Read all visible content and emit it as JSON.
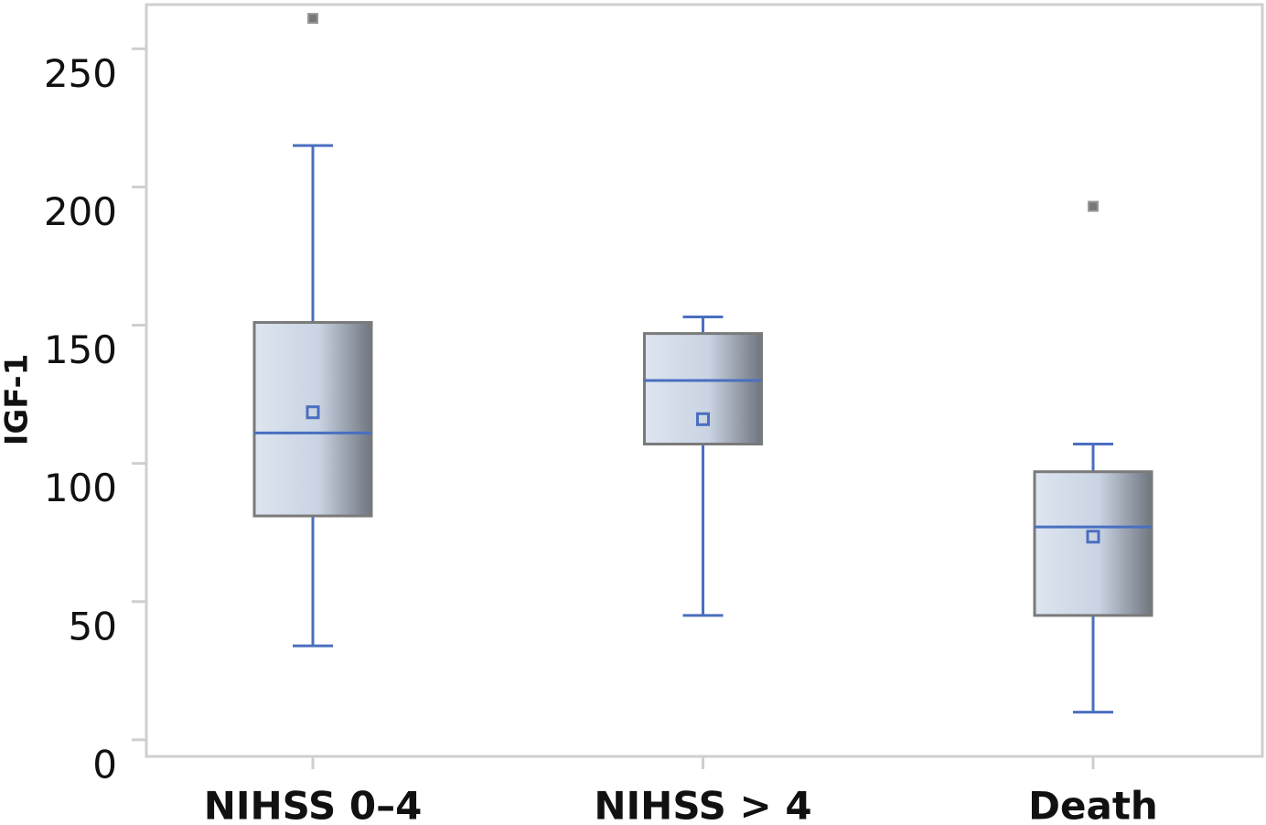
{
  "chart_data": {
    "type": "box",
    "y_label": "IGF-1",
    "categories": [
      "NIHSS 0–4",
      "NIHSS > 4",
      "Death"
    ],
    "boxes": [
      {
        "low": 34,
        "q1": 81,
        "median": 111,
        "q3": 151,
        "high": 215,
        "mean": 118.5,
        "outliers": [
          261
        ]
      },
      {
        "low": 45,
        "q1": 107,
        "median": 130,
        "q3": 147,
        "high": 153,
        "mean": 116,
        "outliers": []
      },
      {
        "low": 10,
        "q1": 45,
        "median": 77,
        "q3": 97,
        "high": 107,
        "mean": 73.5,
        "outliers": [
          193
        ]
      }
    ],
    "color": "#4a6fc0",
    "outlier_color": "#777777",
    "ylim": [
      -6,
      266
    ],
    "yticks": [
      0,
      50,
      100,
      150,
      200,
      250
    ]
  }
}
